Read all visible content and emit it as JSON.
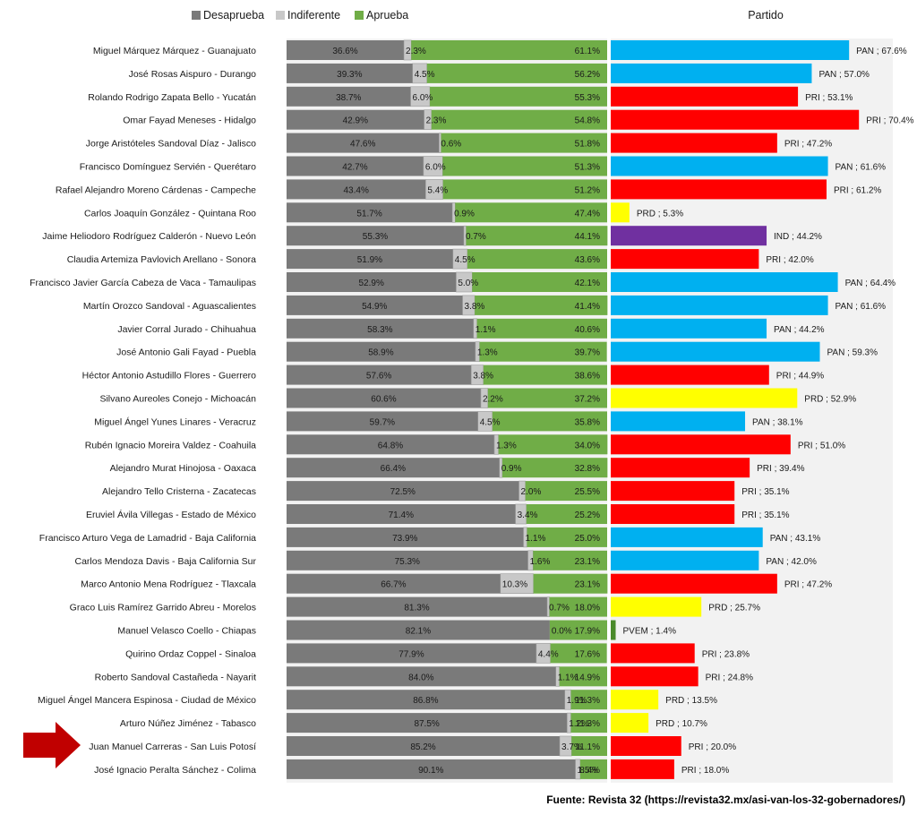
{
  "legend": {
    "items": [
      {
        "label": "Desaprueba",
        "color": "#7a7a7a"
      },
      {
        "label": "Indiferente",
        "color": "#c8c8c8"
      },
      {
        "label": "Aprueba",
        "color": "#70ad47"
      }
    ],
    "party_header": "Partido"
  },
  "source": "Fuente: Revista 32 (https://revista32.mx/asi-van-los-32-gobernadores/)",
  "highlight_icon": "red-arrow-icon",
  "party_colors": {
    "PAN": "#00b0f0",
    "PRI": "#ff0000",
    "PRD": "#ffff00",
    "IND": "#7030a0",
    "PVEM": "#4a8a2a"
  },
  "chart_data": [
    {
      "type": "bar",
      "stacked": true,
      "orientation": "horizontal",
      "value_suffix": "%",
      "xlim": [
        0,
        100
      ],
      "categories": [
        "Miguel Márquez Márquez - Guanajuato",
        "José Rosas Aispuro - Durango",
        "Rolando Rodrigo Zapata Bello - Yucatán",
        "Omar Fayad Meneses - Hidalgo",
        "Jorge Aristóteles Sandoval Díaz - Jalisco",
        "Francisco Domínguez Servién - Querétaro",
        "Rafael Alejandro Moreno Cárdenas - Campeche",
        "Carlos Joaquín González - Quintana Roo",
        "Jaime Heliodoro Rodríguez Calderón - Nuevo León",
        "Claudia Artemiza Pavlovich Arellano - Sonora",
        "Francisco Javier García Cabeza de Vaca - Tamaulipas",
        "Martín Orozco Sandoval - Aguascalientes",
        "Javier Corral Jurado - Chihuahua",
        "José Antonio Gali Fayad - Puebla",
        "Héctor Antonio Astudillo Flores - Guerrero",
        "Silvano Aureoles Conejo - Michoacán",
        "Miguel Ángel Yunes Linares - Veracruz",
        "Rubén Ignacio Moreira Valdez - Coahuila",
        "Alejandro Murat Hinojosa - Oaxaca",
        "Alejandro Tello Cristerna - Zacatecas",
        "Eruviel Ávila Villegas - Estado de México",
        "Francisco Arturo Vega de Lamadrid - Baja California",
        "Carlos Mendoza Davis - Baja California Sur",
        "Marco Antonio Mena Rodríguez - Tlaxcala",
        "Graco Luis Ramírez Garrido Abreu - Morelos",
        "Manuel Velasco Coello - Chiapas",
        "Quirino Ordaz Coppel - Sinaloa",
        "Roberto Sandoval Castañeda - Nayarit",
        "Miguel Ángel Mancera Espinosa - Ciudad de México",
        "Arturo Núñez Jiménez - Tabasco",
        "Juan Manuel Carreras - San Luis Potosí",
        "José Ignacio Peralta Sánchez - Colima"
      ],
      "series": [
        {
          "name": "Desaprueba",
          "color": "#7a7a7a",
          "values": [
            36.6,
            39.3,
            38.7,
            42.9,
            47.6,
            42.7,
            43.4,
            51.7,
            55.3,
            51.9,
            52.9,
            54.9,
            58.3,
            58.9,
            57.6,
            60.6,
            59.7,
            64.8,
            66.4,
            72.5,
            71.4,
            73.9,
            75.3,
            66.7,
            81.3,
            82.1,
            77.9,
            84.0,
            86.8,
            87.5,
            85.2,
            90.1
          ]
        },
        {
          "name": "Indiferente",
          "color": "#c8c8c8",
          "values": [
            2.3,
            4.5,
            6.0,
            2.3,
            0.6,
            6.0,
            5.4,
            0.9,
            0.7,
            4.5,
            5.0,
            3.8,
            1.1,
            1.3,
            3.8,
            2.2,
            4.5,
            1.3,
            0.9,
            2.0,
            3.4,
            1.1,
            1.6,
            10.3,
            0.7,
            0.0,
            4.4,
            1.1,
            1.9,
            1.2,
            3.7,
            1.5
          ]
        },
        {
          "name": "Aprueba",
          "color": "#70ad47",
          "values": [
            61.1,
            56.2,
            55.3,
            54.8,
            51.8,
            51.3,
            51.2,
            47.4,
            44.1,
            43.6,
            42.1,
            41.4,
            40.6,
            39.7,
            38.6,
            37.2,
            35.8,
            34.0,
            32.8,
            25.5,
            25.2,
            25.0,
            23.1,
            23.1,
            18.0,
            17.9,
            17.6,
            14.9,
            11.3,
            11.3,
            11.1,
            8.4
          ]
        }
      ]
    },
    {
      "type": "bar",
      "orientation": "horizontal",
      "title": "Partido",
      "value_suffix": "%",
      "xlim": [
        0,
        100
      ],
      "categories_same_as_previous": true,
      "parties": [
        "PAN",
        "PAN",
        "PRI",
        "PRI",
        "PRI",
        "PAN",
        "PRI",
        "PRD",
        "IND",
        "PRI",
        "PAN",
        "PAN",
        "PAN",
        "PAN",
        "PRI",
        "PRD",
        "PAN",
        "PRI",
        "PRI",
        "PRI",
        "PRI",
        "PAN",
        "PAN",
        "PRI",
        "PRD",
        "PVEM",
        "PRI",
        "PRI",
        "PRD",
        "PRD",
        "PRI",
        "PRI"
      ],
      "values": [
        67.6,
        57.0,
        53.1,
        70.4,
        47.2,
        61.6,
        61.2,
        5.3,
        44.2,
        42.0,
        64.4,
        61.6,
        44.2,
        59.3,
        44.9,
        52.9,
        38.1,
        51.0,
        39.4,
        35.1,
        35.1,
        43.1,
        42.0,
        47.2,
        25.7,
        1.4,
        23.8,
        24.8,
        13.5,
        10.7,
        20.0,
        18.0
      ],
      "labels": [
        "PAN ; 67.6%",
        "PAN ; 57.0%",
        "PRI ; 53.1%",
        "PRI ; 70.4%",
        "PRI ; 47.2%",
        "PAN ; 61.6%",
        "PRI ; 61.2%",
        "PRD ; 5.3%",
        "IND ; 44.2%",
        "PRI ; 42.0%",
        "PAN ; 64.4%",
        "PAN ; 61.6%",
        "PAN ; 44.2%",
        "PAN ; 59.3%",
        "PRI ; 44.9%",
        "PRD ; 52.9%",
        "PAN ; 38.1%",
        "PRI ; 51.0%",
        "PRI ; 39.4%",
        "PRI ; 35.1%",
        "PRI ; 35.1%",
        "PAN ; 43.1%",
        "PAN ; 42.0%",
        "PRI ; 47.2%",
        "PRD ; 25.7%",
        "PVEM  ; 1.4%",
        "PRI ; 23.8%",
        "PRI ; 24.8%",
        "PRD ; 13.5%",
        "PRD ; 10.7%",
        "PRI ; 20.0%",
        "PRI ; 18.0%"
      ]
    }
  ]
}
